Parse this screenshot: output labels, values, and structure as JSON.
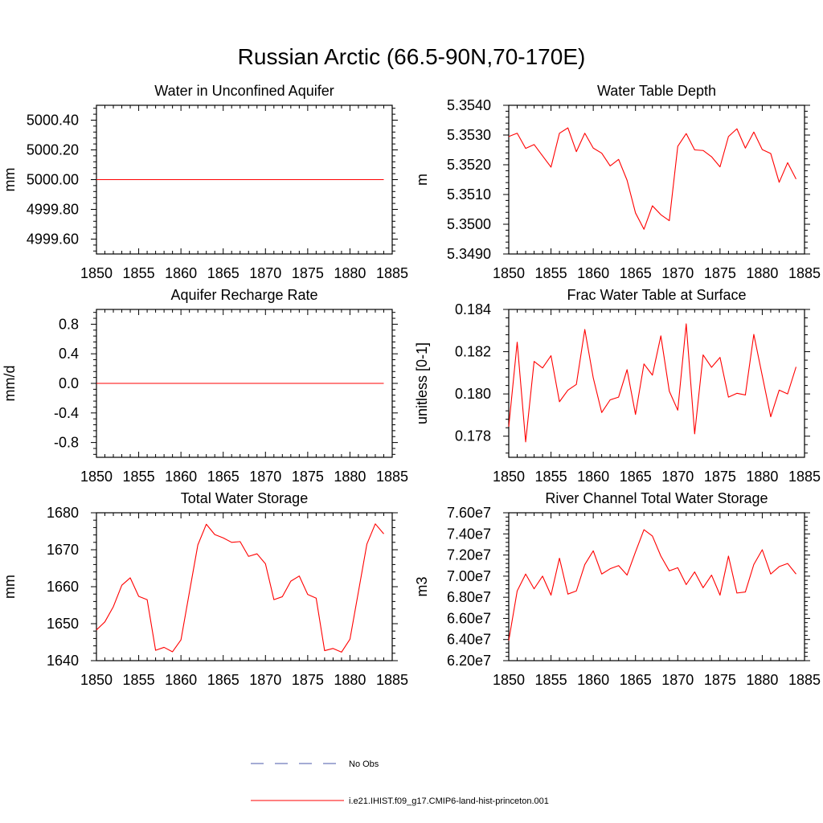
{
  "figure": {
    "title": "Russian Arctic (66.5-90N,70-170E)"
  },
  "colors": {
    "model": "#ff0000",
    "obs": "#4a5aa8",
    "axis": "#000000"
  },
  "legend": {
    "placement": "bottom-center",
    "entries": [
      {
        "label": "No Obs",
        "style": "dashed",
        "color": "#4a5aa8"
      },
      {
        "label": "i.e21.IHIST.f09_g17.CMIP6-land-hist-princeton.001",
        "style": "solid",
        "color": "#ff0000"
      }
    ]
  },
  "chart_data": [
    {
      "type": "line",
      "title": "Water in Unconfined Aquifer",
      "ylabel": "mm",
      "xlim": [
        1850,
        1885
      ],
      "ylim": [
        4999.5,
        5000.5
      ],
      "xticks": [
        1850,
        1855,
        1860,
        1865,
        1870,
        1875,
        1880,
        1885
      ],
      "xtick_labels": [
        "1850",
        "1855",
        "1860",
        "1865",
        "1870",
        "1875",
        "1880",
        "1885"
      ],
      "yticks": [
        4999.6,
        4999.8,
        5000.0,
        5000.2,
        5000.4
      ],
      "ytick_labels": [
        "4999.60",
        "4999.80",
        "5000.00",
        "5000.20",
        "5000.40"
      ],
      "x_start": 1850,
      "values": [
        5000,
        5000,
        5000,
        5000,
        5000,
        5000,
        5000,
        5000,
        5000,
        5000,
        5000,
        5000,
        5000,
        5000,
        5000,
        5000,
        5000,
        5000,
        5000,
        5000,
        5000,
        5000,
        5000,
        5000,
        5000,
        5000,
        5000,
        5000,
        5000,
        5000,
        5000,
        5000,
        5000,
        5000,
        5000
      ]
    },
    {
      "type": "line",
      "title": "Water Table Depth",
      "ylabel": "m",
      "xlim": [
        1850,
        1885
      ],
      "ylim": [
        5.349,
        5.354
      ],
      "xticks": [
        1850,
        1855,
        1860,
        1865,
        1870,
        1875,
        1880,
        1885
      ],
      "xtick_labels": [
        "1850",
        "1855",
        "1860",
        "1865",
        "1870",
        "1875",
        "1880",
        "1885"
      ],
      "yticks": [
        5.349,
        5.35,
        5.351,
        5.352,
        5.353,
        5.354
      ],
      "ytick_labels": [
        "5.3490",
        "5.3500",
        "5.3510",
        "5.3520",
        "5.3530",
        "5.3540"
      ],
      "x_start": 1850,
      "values": [
        5.35295,
        5.35306,
        5.35255,
        5.35268,
        5.3523,
        5.35192,
        5.35306,
        5.35324,
        5.35244,
        5.35306,
        5.35256,
        5.35239,
        5.35196,
        5.35218,
        5.35148,
        5.35038,
        5.34983,
        5.35062,
        5.35032,
        5.35012,
        5.35262,
        5.35305,
        5.3525,
        5.35248,
        5.35227,
        5.35193,
        5.35295,
        5.35321,
        5.35256,
        5.3531,
        5.35251,
        5.35238,
        5.35141,
        5.35207,
        5.35152
      ]
    },
    {
      "type": "line",
      "title": "Aquifer Recharge Rate",
      "ylabel": "mm/d",
      "xlim": [
        1850,
        1885
      ],
      "ylim": [
        -1.0,
        1.0
      ],
      "xticks": [
        1850,
        1855,
        1860,
        1865,
        1870,
        1875,
        1880,
        1885
      ],
      "xtick_labels": [
        "1850",
        "1855",
        "1860",
        "1865",
        "1870",
        "1875",
        "1880",
        "1885"
      ],
      "yticks": [
        -0.8,
        -0.4,
        0.0,
        0.4,
        0.8
      ],
      "ytick_labels": [
        "-0.8",
        "-0.4",
        "0.0",
        "0.4",
        "0.8"
      ],
      "x_start": 1850,
      "values": [
        0,
        0,
        0,
        0,
        0,
        0,
        0,
        0,
        0,
        0,
        0,
        0,
        0,
        0,
        0,
        0,
        0,
        0,
        0,
        0,
        0,
        0,
        0,
        0,
        0,
        0,
        0,
        0,
        0,
        0,
        0,
        0,
        0,
        0,
        0
      ]
    },
    {
      "type": "line",
      "title": "Frac Water Table at Surface",
      "ylabel": "unitless [0-1]",
      "xlim": [
        1850,
        1885
      ],
      "ylim": [
        0.177,
        0.184
      ],
      "xticks": [
        1850,
        1855,
        1860,
        1865,
        1870,
        1875,
        1880,
        1885
      ],
      "xtick_labels": [
        "1850",
        "1855",
        "1860",
        "1865",
        "1870",
        "1875",
        "1880",
        "1885"
      ],
      "yticks": [
        0.178,
        0.18,
        0.182,
        0.184
      ],
      "ytick_labels": [
        "0.178",
        "0.180",
        "0.182",
        "0.184"
      ],
      "x_start": 1850,
      "values": [
        0.17845,
        0.18245,
        0.17773,
        0.18154,
        0.18123,
        0.18181,
        0.17963,
        0.18018,
        0.18045,
        0.18305,
        0.18076,
        0.17912,
        0.17972,
        0.17985,
        0.18115,
        0.17903,
        0.18142,
        0.18089,
        0.18275,
        0.18013,
        0.17923,
        0.18332,
        0.17811,
        0.18185,
        0.18126,
        0.18173,
        0.17985,
        0.18003,
        0.17995,
        0.18282,
        0.18086,
        0.17892,
        0.18018,
        0.18,
        0.18128
      ]
    },
    {
      "type": "line",
      "title": "Total Water Storage",
      "ylabel": "mm",
      "xlim": [
        1850,
        1885
      ],
      "ylim": [
        1640,
        1680
      ],
      "xticks": [
        1850,
        1855,
        1860,
        1865,
        1870,
        1875,
        1880,
        1885
      ],
      "xtick_labels": [
        "1850",
        "1855",
        "1860",
        "1865",
        "1870",
        "1875",
        "1880",
        "1885"
      ],
      "yticks": [
        1640,
        1650,
        1660,
        1670,
        1680
      ],
      "ytick_labels": [
        "1640",
        "1650",
        "1660",
        "1670",
        "1680"
      ],
      "x_start": 1850,
      "values": [
        1648.3,
        1650.5,
        1654.6,
        1660.4,
        1662.4,
        1657.4,
        1656.5,
        1642.8,
        1643.6,
        1642.4,
        1645.6,
        1658.5,
        1671.3,
        1676.9,
        1674.1,
        1673.2,
        1672.0,
        1672.2,
        1668.2,
        1668.9,
        1666.2,
        1656.5,
        1657.3,
        1661.5,
        1662.9,
        1657.9,
        1656.9,
        1642.7,
        1643.3,
        1642.3,
        1645.8,
        1658.6,
        1671.5,
        1677.0,
        1674.3
      ]
    },
    {
      "type": "line",
      "title": "River Channel Total Water Storage",
      "ylabel": "m3",
      "xlim": [
        1850,
        1885
      ],
      "ylim": [
        62000000,
        76000000
      ],
      "xticks": [
        1850,
        1855,
        1860,
        1865,
        1870,
        1875,
        1880,
        1885
      ],
      "xtick_labels": [
        "1850",
        "1855",
        "1860",
        "1865",
        "1870",
        "1875",
        "1880",
        "1885"
      ],
      "yticks": [
        62000000,
        64000000,
        66000000,
        68000000,
        70000000,
        72000000,
        74000000,
        76000000
      ],
      "ytick_labels": [
        "6.20e7",
        "6.40e7",
        "6.60e7",
        "6.80e7",
        "7.00e7",
        "7.20e7",
        "7.40e7",
        "7.60e7"
      ],
      "x_start": 1850,
      "values": [
        63900000,
        68600000,
        70200000,
        68800000,
        70000000,
        68200000,
        71700000,
        68300000,
        68600000,
        71100000,
        72400000,
        70200000,
        70700000,
        71000000,
        70100000,
        72300000,
        74400000,
        73800000,
        71900000,
        70500000,
        70800000,
        69200000,
        70400000,
        68900000,
        70100000,
        68200000,
        71900000,
        68400000,
        68500000,
        71100000,
        72500000,
        70200000,
        70900000,
        71200000,
        70200000
      ]
    }
  ]
}
